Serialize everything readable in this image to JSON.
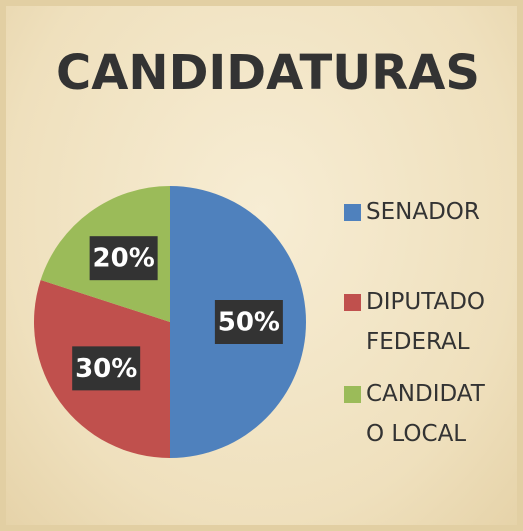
{
  "chart_data": {
    "type": "pie",
    "title": "CANDIDATURAS",
    "categories": [
      "SENADOR",
      "DIPUTADO FEDERAL",
      "CANDIDATO LOCAL"
    ],
    "values": [
      50,
      30,
      20
    ],
    "value_labels": [
      "50%",
      "30%",
      "20%"
    ],
    "colors": [
      "#4f81bd",
      "#c0504d",
      "#9bbb59"
    ],
    "legend": "right"
  }
}
